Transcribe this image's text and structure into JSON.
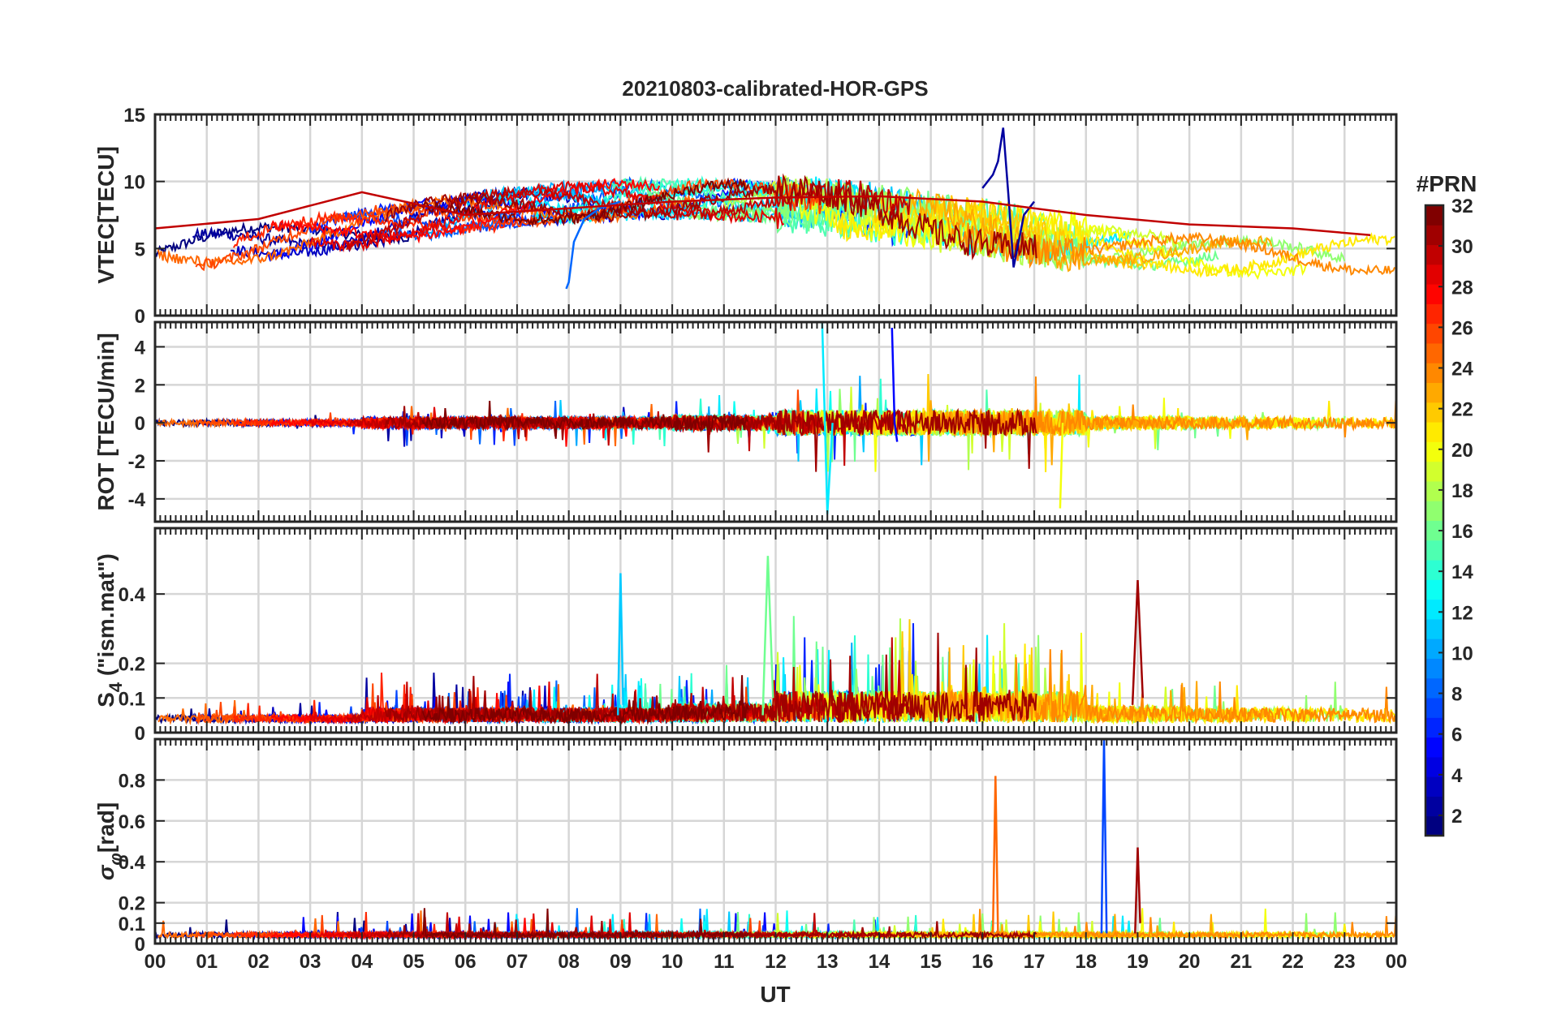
{
  "chart_data": {
    "type": "line",
    "title": "20210803-calibrated-HOR-GPS",
    "xlabel": "UT",
    "x_range_hours": [
      0,
      24
    ],
    "x_ticks": [
      {
        "v": 0,
        "label": "00"
      },
      {
        "v": 1,
        "label": "01"
      },
      {
        "v": 2,
        "label": "02"
      },
      {
        "v": 3,
        "label": "03"
      },
      {
        "v": 4,
        "label": "04"
      },
      {
        "v": 5,
        "label": "05"
      },
      {
        "v": 6,
        "label": "06"
      },
      {
        "v": 7,
        "label": "07"
      },
      {
        "v": 8,
        "label": "08"
      },
      {
        "v": 9,
        "label": "09"
      },
      {
        "v": 10,
        "label": "10"
      },
      {
        "v": 11,
        "label": "11"
      },
      {
        "v": 12,
        "label": "12"
      },
      {
        "v": 13,
        "label": "13"
      },
      {
        "v": 14,
        "label": "14"
      },
      {
        "v": 15,
        "label": "15"
      },
      {
        "v": 16,
        "label": "16"
      },
      {
        "v": 17,
        "label": "17"
      },
      {
        "v": 18,
        "label": "18"
      },
      {
        "v": 19,
        "label": "19"
      },
      {
        "v": 20,
        "label": "20"
      },
      {
        "v": 21,
        "label": "21"
      },
      {
        "v": 22,
        "label": "22"
      },
      {
        "v": 23,
        "label": "23"
      },
      {
        "v": 24,
        "label": "00"
      }
    ],
    "colorbar": {
      "label": "#PRN",
      "range": [
        1,
        32
      ],
      "ticks": [
        {
          "v": 2,
          "label": "2"
        },
        {
          "v": 4,
          "label": "4"
        },
        {
          "v": 6,
          "label": "6"
        },
        {
          "v": 8,
          "label": "8"
        },
        {
          "v": 10,
          "label": "10"
        },
        {
          "v": 12,
          "label": "12"
        },
        {
          "v": 14,
          "label": "14"
        },
        {
          "v": 16,
          "label": "16"
        },
        {
          "v": 18,
          "label": "18"
        },
        {
          "v": 20,
          "label": "20"
        },
        {
          "v": 22,
          "label": "22"
        },
        {
          "v": 24,
          "label": "24"
        },
        {
          "v": 26,
          "label": "26"
        },
        {
          "v": 28,
          "label": "28"
        },
        {
          "v": 30,
          "label": "30"
        },
        {
          "v": 32,
          "label": "32"
        }
      ]
    },
    "panels": [
      {
        "id": "vtec",
        "ylabel": "VTEC[TECU]",
        "ylim": [
          0,
          15
        ],
        "y_ticks": [
          {
            "v": 0,
            "label": "0"
          },
          {
            "v": 5,
            "label": "5"
          },
          {
            "v": 10,
            "label": "10"
          },
          {
            "v": 15,
            "label": "15"
          }
        ],
        "series": [
          {
            "prn": 2,
            "x": [
              16.0,
              16.2,
              16.3,
              16.4,
              16.5,
              16.6,
              16.8,
              17.0
            ],
            "y": [
              9.5,
              10.5,
              11.5,
              14.0,
              9.0,
              3.6,
              7.5,
              8.5
            ]
          },
          {
            "prn": 8,
            "x": [
              7.95,
              8.0,
              8.1,
              8.3,
              8.6,
              9.0
            ],
            "y": [
              2.0,
              2.5,
              5.5,
              7.2,
              8.0,
              8.5
            ]
          },
          {
            "prn": 30,
            "x": [
              0,
              2,
              4,
              6,
              8,
              10,
              12,
              14,
              16,
              18,
              20,
              22,
              23.5
            ],
            "y": [
              6.5,
              7.2,
              9.2,
              7.5,
              8.0,
              8.5,
              8.8,
              8.9,
              8.5,
              7.5,
              6.8,
              6.5,
              6.0
            ]
          }
        ]
      },
      {
        "id": "rot",
        "ylabel": "ROT [TECU/min]",
        "ylim": [
          -5.2,
          5.3
        ],
        "y_ticks": [
          {
            "v": -4,
            "label": "-4"
          },
          {
            "v": -2,
            "label": "-2"
          },
          {
            "v": 0,
            "label": "0"
          },
          {
            "v": 2,
            "label": "2"
          },
          {
            "v": 4,
            "label": "4"
          }
        ],
        "series": [
          {
            "prn": 12,
            "x": [
              12.9,
              13.0,
              13.1
            ],
            "y": [
              5.3,
              -4.8,
              0.0
            ]
          },
          {
            "prn": 5,
            "x": [
              14.25,
              14.3,
              14.35
            ],
            "y": [
              5.0,
              0.0,
              -1.0
            ]
          },
          {
            "prn": 20,
            "x": [
              17.5,
              17.55
            ],
            "y": [
              -4.5,
              0.0
            ]
          }
        ]
      },
      {
        "id": "s4",
        "ylabel": "S4 (\"ism.mat\")",
        "ylabel_main": "S",
        "ylabel_sub": "4",
        "ylabel_rest": " (\"ism.mat\")",
        "ylim": [
          0,
          0.59
        ],
        "y_ticks": [
          {
            "v": 0,
            "label": "0"
          },
          {
            "v": 0.1,
            "label": "0.1"
          },
          {
            "v": 0.2,
            "label": "0.2"
          },
          {
            "v": 0.4,
            "label": "0.4"
          }
        ],
        "series": [
          {
            "prn": 16,
            "x": [
              11.75,
              11.85,
              11.95
            ],
            "y": [
              0.05,
              0.51,
              0.1
            ]
          },
          {
            "prn": 31,
            "x": [
              18.9,
              19.0,
              19.1
            ],
            "y": [
              0.08,
              0.44,
              0.1
            ]
          },
          {
            "prn": 11,
            "x": [
              8.95,
              9.0,
              9.05
            ],
            "y": [
              0.05,
              0.46,
              0.08
            ]
          }
        ]
      },
      {
        "id": "sigma_phi",
        "ylabel": "σφ[rad]",
        "ylabel_main": "σ",
        "ylabel_sub": "φ",
        "ylabel_rest": "[rad]",
        "ylim": [
          0,
          1.0
        ],
        "y_ticks": [
          {
            "v": 0,
            "label": "0"
          },
          {
            "v": 0.1,
            "label": "0.1"
          },
          {
            "v": 0.2,
            "label": "0.2"
          },
          {
            "v": 0.4,
            "label": "0.4"
          },
          {
            "v": 0.6,
            "label": "0.6"
          },
          {
            "v": 0.8,
            "label": "0.8"
          }
        ],
        "series": [
          {
            "prn": 7,
            "x": [
              18.3,
              18.35,
              18.4
            ],
            "y": [
              0.05,
              1.0,
              0.05
            ]
          },
          {
            "prn": 25,
            "x": [
              16.2,
              16.25,
              16.3
            ],
            "y": [
              0.05,
              0.82,
              0.05
            ]
          },
          {
            "prn": 31,
            "x": [
              18.95,
              19.0,
              19.05
            ],
            "y": [
              0.05,
              0.47,
              0.1
            ]
          }
        ]
      }
    ]
  }
}
